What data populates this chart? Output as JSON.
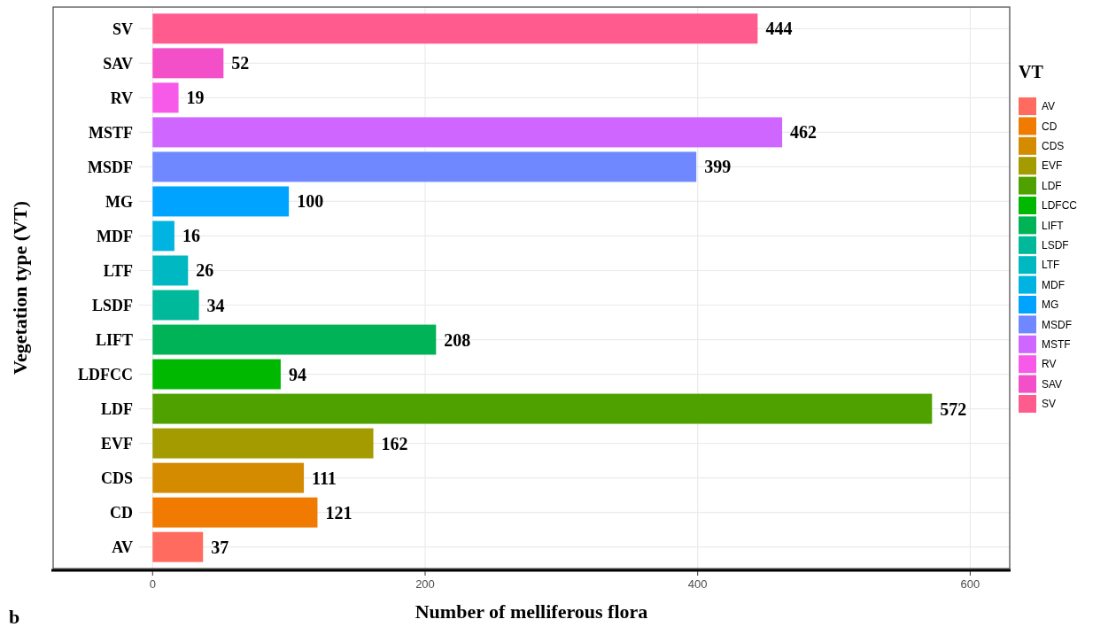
{
  "chart_data": {
    "type": "bar",
    "orientation": "horizontal",
    "xlabel": "Number of melliferous flora",
    "ylabel": "Vegetation type (VT)",
    "legend_title": "VT",
    "legend": "right",
    "grid": true,
    "data_labels": true,
    "categories": [
      "SV",
      "SAV",
      "RV",
      "MSTF",
      "MSDF",
      "MG",
      "MDF",
      "LTF",
      "LSDF",
      "LIFT",
      "LDFCC",
      "LDF",
      "EVF",
      "CDS",
      "CD",
      "AV"
    ],
    "series": [
      {
        "name": "AV",
        "color": "#ff6b5e",
        "values": [
          null,
          null,
          null,
          null,
          null,
          null,
          null,
          null,
          null,
          null,
          null,
          null,
          null,
          null,
          null,
          37
        ]
      },
      {
        "name": "CD",
        "color": "#f07b00",
        "values": [
          null,
          null,
          null,
          null,
          null,
          null,
          null,
          null,
          null,
          null,
          null,
          null,
          null,
          null,
          121,
          null
        ]
      },
      {
        "name": "CDS",
        "color": "#d48b00",
        "values": [
          null,
          null,
          null,
          null,
          null,
          null,
          null,
          null,
          null,
          null,
          null,
          null,
          null,
          111,
          null,
          null
        ]
      },
      {
        "name": "EVF",
        "color": "#a39b00",
        "values": [
          null,
          null,
          null,
          null,
          null,
          null,
          null,
          null,
          null,
          null,
          null,
          null,
          162,
          null,
          null,
          null
        ]
      },
      {
        "name": "LDF",
        "color": "#4fa100",
        "values": [
          null,
          null,
          null,
          null,
          null,
          null,
          null,
          null,
          null,
          null,
          null,
          572,
          null,
          null,
          null,
          null
        ]
      },
      {
        "name": "LDFCC",
        "color": "#00b800",
        "values": [
          null,
          null,
          null,
          null,
          null,
          null,
          null,
          null,
          null,
          null,
          94,
          null,
          null,
          null,
          null,
          null
        ]
      },
      {
        "name": "LIFT",
        "color": "#00b356",
        "values": [
          null,
          null,
          null,
          null,
          null,
          null,
          null,
          null,
          null,
          208,
          null,
          null,
          null,
          null,
          null,
          null
        ]
      },
      {
        "name": "LSDF",
        "color": "#00b89a",
        "values": [
          null,
          null,
          null,
          null,
          null,
          null,
          null,
          null,
          34,
          null,
          null,
          null,
          null,
          null,
          null,
          null
        ]
      },
      {
        "name": "LTF",
        "color": "#00b8c2",
        "values": [
          null,
          null,
          null,
          null,
          null,
          null,
          null,
          26,
          null,
          null,
          null,
          null,
          null,
          null,
          null,
          null
        ]
      },
      {
        "name": "MDF",
        "color": "#00b3e0",
        "values": [
          null,
          null,
          null,
          null,
          null,
          null,
          16,
          null,
          null,
          null,
          null,
          null,
          null,
          null,
          null,
          null
        ]
      },
      {
        "name": "MG",
        "color": "#00a3ff",
        "values": [
          null,
          null,
          null,
          null,
          null,
          100,
          null,
          null,
          null,
          null,
          null,
          null,
          null,
          null,
          null,
          null
        ]
      },
      {
        "name": "MSDF",
        "color": "#6f87ff",
        "values": [
          null,
          null,
          null,
          null,
          399,
          null,
          null,
          null,
          null,
          null,
          null,
          null,
          null,
          null,
          null,
          null
        ]
      },
      {
        "name": "MSTF",
        "color": "#cf66ff",
        "values": [
          null,
          null,
          null,
          462,
          null,
          null,
          null,
          null,
          null,
          null,
          null,
          null,
          null,
          null,
          null,
          null
        ]
      },
      {
        "name": "RV",
        "color": "#f75ae8",
        "values": [
          null,
          null,
          19,
          null,
          null,
          null,
          null,
          null,
          null,
          null,
          null,
          null,
          null,
          null,
          null,
          null
        ]
      },
      {
        "name": "SAV",
        "color": "#f24fc8",
        "values": [
          null,
          52,
          null,
          null,
          null,
          null,
          null,
          null,
          null,
          null,
          null,
          null,
          null,
          null,
          null,
          null
        ]
      },
      {
        "name": "SV",
        "color": "#ff5b8f",
        "values": [
          444,
          null,
          null,
          null,
          null,
          null,
          null,
          null,
          null,
          null,
          null,
          null,
          null,
          null,
          null,
          null
        ]
      }
    ],
    "xlim": [
      -73,
      629
    ],
    "xticks": [
      0,
      200,
      400,
      600
    ],
    "annotations": [
      "b"
    ]
  }
}
